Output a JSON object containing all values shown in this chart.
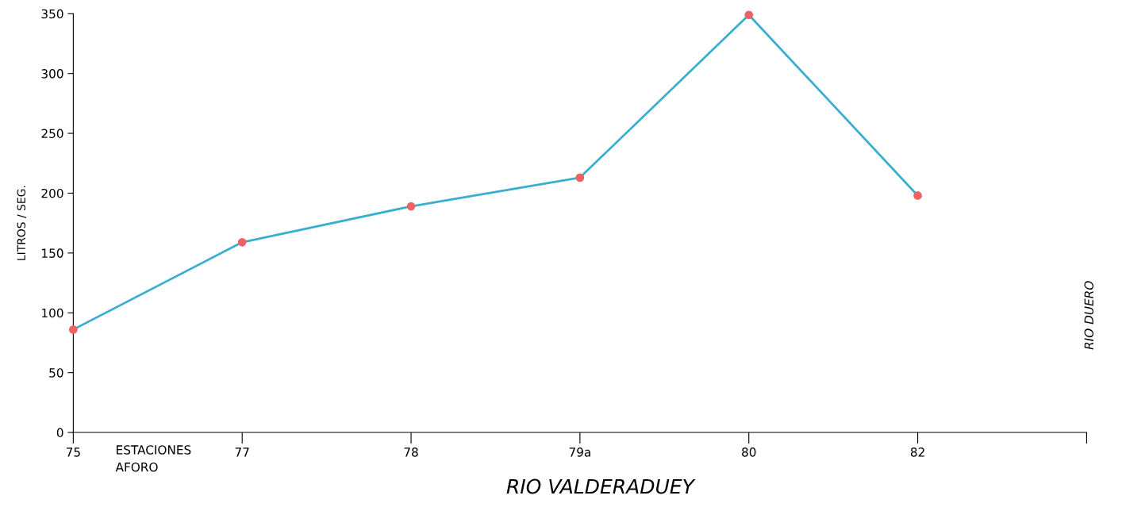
{
  "chart_data": {
    "type": "line",
    "categories": [
      "75",
      "77",
      "78",
      "79a",
      "80",
      "82",
      null
    ],
    "series": [
      {
        "color": "#3aaed0",
        "colors": [
          "#f06262",
          "#f06262",
          "#f06262",
          "#f06262",
          "#f06262",
          "#f06262",
          null
        ],
        "values": [
          86,
          159,
          189,
          213,
          349,
          198,
          null
        ]
      }
    ],
    "ylim": [
      0,
      350
    ],
    "yticks": [
      0,
      50,
      100,
      150,
      200,
      250,
      300,
      350
    ],
    "ylabel": "LITROS / SEG.",
    "xlabel": "RIO VALDERADUEY",
    "annotations": [
      "ESTACIONES\nAFORO",
      "RIO DUERO"
    ],
    "marker": "circle",
    "grid": false,
    "legend": false
  }
}
